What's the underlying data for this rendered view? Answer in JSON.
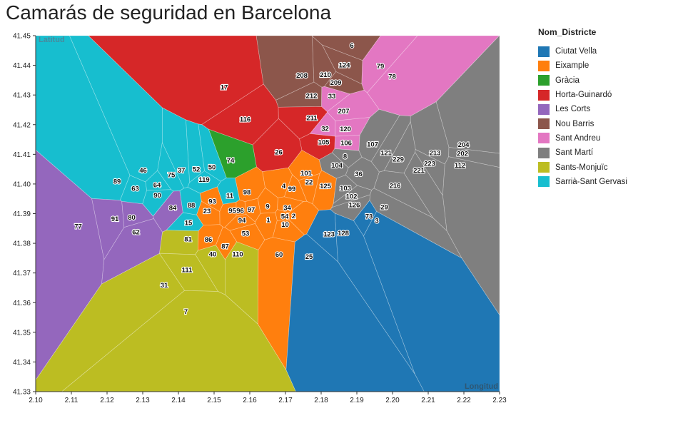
{
  "title": "Camarás de seguridad en Barcelona",
  "chart_data": {
    "type": "scatter",
    "title": "Camarás de seguridad en Barcelona",
    "xlabel": "Longitud",
    "ylabel": "Latitud",
    "xlim": [
      2.1,
      2.23
    ],
    "ylim": [
      41.33,
      41.45
    ],
    "x_ticks": [
      "2.10",
      "2.11",
      "2.12",
      "2.13",
      "2.14",
      "2.15",
      "2.16",
      "2.17",
      "2.18",
      "2.19",
      "2.20",
      "2.21",
      "2.22",
      "2.23"
    ],
    "y_ticks": [
      "41.33",
      "41.34",
      "41.35",
      "41.36",
      "41.37",
      "41.38",
      "41.39",
      "41.40",
      "41.41",
      "41.42",
      "41.43",
      "41.44",
      "41.45"
    ],
    "legend_title": "Nom_Districte",
    "legend_position": "right",
    "series": [
      {
        "name": "Ciutat Vella",
        "color": "#1f77b4"
      },
      {
        "name": "Eixample",
        "color": "#ff7f0e"
      },
      {
        "name": "Gràcia",
        "color": "#2ca02c"
      },
      {
        "name": "Horta-Guinardó",
        "color": "#d62728"
      },
      {
        "name": "Les Corts",
        "color": "#9467bd"
      },
      {
        "name": "Nou Barris",
        "color": "#8c564b"
      },
      {
        "name": "Sant Andreu",
        "color": "#e377c2"
      },
      {
        "name": "Sant Martí",
        "color": "#7f7f7f"
      },
      {
        "name": "Sants-Monjuïc",
        "color": "#bcbd22"
      },
      {
        "name": "Sarrià-Sant Gervasi",
        "color": "#17becf"
      }
    ],
    "points": [
      {
        "id": "6",
        "x": 2.1886,
        "y": 41.4468,
        "d": 5
      },
      {
        "id": "124",
        "x": 2.1865,
        "y": 41.4402,
        "d": 5
      },
      {
        "id": "79",
        "x": 2.1966,
        "y": 41.4398,
        "d": 6
      },
      {
        "id": "78",
        "x": 2.1999,
        "y": 41.4363,
        "d": 6
      },
      {
        "id": "208",
        "x": 2.1746,
        "y": 41.4366,
        "d": 5
      },
      {
        "id": "210",
        "x": 2.1812,
        "y": 41.4369,
        "d": 5
      },
      {
        "id": "209",
        "x": 2.1841,
        "y": 41.4342,
        "d": 5
      },
      {
        "id": "212",
        "x": 2.1773,
        "y": 41.4298,
        "d": 5
      },
      {
        "id": "33",
        "x": 2.183,
        "y": 41.4297,
        "d": 6
      },
      {
        "id": "17",
        "x": 2.1528,
        "y": 41.4327,
        "d": 3
      },
      {
        "id": "207",
        "x": 2.1863,
        "y": 41.4246,
        "d": 6
      },
      {
        "id": "116",
        "x": 2.1587,
        "y": 41.4219,
        "d": 3
      },
      {
        "id": "211",
        "x": 2.1774,
        "y": 41.4223,
        "d": 3
      },
      {
        "id": "32",
        "x": 2.1811,
        "y": 41.4187,
        "d": 6
      },
      {
        "id": "120",
        "x": 2.1868,
        "y": 41.4186,
        "d": 6
      },
      {
        "id": "105",
        "x": 2.1807,
        "y": 41.4142,
        "d": 3
      },
      {
        "id": "106",
        "x": 2.187,
        "y": 41.4139,
        "d": 6
      },
      {
        "id": "107",
        "x": 2.1944,
        "y": 41.4134,
        "d": 7
      },
      {
        "id": "204",
        "x": 2.2199,
        "y": 41.4133,
        "d": 7
      },
      {
        "id": "26",
        "x": 2.1681,
        "y": 41.4108,
        "d": 3
      },
      {
        "id": "121",
        "x": 2.1982,
        "y": 41.4106,
        "d": 7
      },
      {
        "id": "213",
        "x": 2.2119,
        "y": 41.4106,
        "d": 7
      },
      {
        "id": "202",
        "x": 2.2196,
        "y": 41.4103,
        "d": 7
      },
      {
        "id": "8",
        "x": 2.1867,
        "y": 41.4093,
        "d": 7
      },
      {
        "id": "229",
        "x": 2.2016,
        "y": 41.4084,
        "d": 7
      },
      {
        "id": "74",
        "x": 2.1546,
        "y": 41.408,
        "d": 2
      },
      {
        "id": "223",
        "x": 2.2104,
        "y": 41.407,
        "d": 7
      },
      {
        "id": "112",
        "x": 2.2189,
        "y": 41.4063,
        "d": 7
      },
      {
        "id": "104",
        "x": 2.1844,
        "y": 41.4063,
        "d": 7
      },
      {
        "id": "50",
        "x": 2.1494,
        "y": 41.4057,
        "d": 9
      },
      {
        "id": "221",
        "x": 2.2074,
        "y": 41.4047,
        "d": 7
      },
      {
        "id": "52",
        "x": 2.145,
        "y": 41.405,
        "d": 9
      },
      {
        "id": "37",
        "x": 2.1408,
        "y": 41.4047,
        "d": 9
      },
      {
        "id": "46",
        "x": 2.1301,
        "y": 41.4047,
        "d": 9
      },
      {
        "id": "101",
        "x": 2.1758,
        "y": 41.4037,
        "d": 1
      },
      {
        "id": "36",
        "x": 2.1905,
        "y": 41.4035,
        "d": 7
      },
      {
        "id": "75",
        "x": 2.138,
        "y": 41.4031,
        "d": 9
      },
      {
        "id": "119",
        "x": 2.1472,
        "y": 41.4016,
        "d": 9
      },
      {
        "id": "22",
        "x": 2.1766,
        "y": 41.4007,
        "d": 1
      },
      {
        "id": "89",
        "x": 2.1228,
        "y": 41.4009,
        "d": 9
      },
      {
        "id": "64",
        "x": 2.134,
        "y": 41.3997,
        "d": 9
      },
      {
        "id": "4",
        "x": 2.1695,
        "y": 41.3994,
        "d": 1
      },
      {
        "id": "125",
        "x": 2.1812,
        "y": 41.3994,
        "d": 1
      },
      {
        "id": "216",
        "x": 2.2007,
        "y": 41.3995,
        "d": 7
      },
      {
        "id": "99",
        "x": 2.1718,
        "y": 41.3984,
        "d": 1
      },
      {
        "id": "103",
        "x": 2.1868,
        "y": 41.3986,
        "d": 7
      },
      {
        "id": "63",
        "x": 2.1279,
        "y": 41.3985,
        "d": 9
      },
      {
        "id": "98",
        "x": 2.1592,
        "y": 41.3973,
        "d": 1
      },
      {
        "id": "90",
        "x": 2.1341,
        "y": 41.3962,
        "d": 9
      },
      {
        "id": "11",
        "x": 2.1544,
        "y": 41.3961,
        "d": 9
      },
      {
        "id": "102",
        "x": 2.1885,
        "y": 41.3959,
        "d": 7
      },
      {
        "id": "93",
        "x": 2.1495,
        "y": 41.3942,
        "d": 1
      },
      {
        "id": "88",
        "x": 2.1436,
        "y": 41.3929,
        "d": 9
      },
      {
        "id": "126",
        "x": 2.1893,
        "y": 41.393,
        "d": 7
      },
      {
        "id": "9",
        "x": 2.165,
        "y": 41.3925,
        "d": 1
      },
      {
        "id": "34",
        "x": 2.1705,
        "y": 41.3921,
        "d": 1
      },
      {
        "id": "29",
        "x": 2.1977,
        "y": 41.3923,
        "d": 7
      },
      {
        "id": "84",
        "x": 2.1384,
        "y": 41.392,
        "d": 4
      },
      {
        "id": "97",
        "x": 2.1604,
        "y": 41.3915,
        "d": 1
      },
      {
        "id": "95",
        "x": 2.1551,
        "y": 41.3911,
        "d": 1
      },
      {
        "id": "96",
        "x": 2.1573,
        "y": 41.3911,
        "d": 1
      },
      {
        "id": "23",
        "x": 2.148,
        "y": 41.391,
        "d": 1
      },
      {
        "id": "54",
        "x": 2.1698,
        "y": 41.3891,
        "d": 1
      },
      {
        "id": "2",
        "x": 2.1723,
        "y": 41.3893,
        "d": 1
      },
      {
        "id": "73",
        "x": 2.1934,
        "y": 41.3891,
        "d": 0
      },
      {
        "id": "91",
        "x": 2.1222,
        "y": 41.3883,
        "d": 4
      },
      {
        "id": "80",
        "x": 2.1269,
        "y": 41.3888,
        "d": 4
      },
      {
        "id": "1",
        "x": 2.1652,
        "y": 41.3879,
        "d": 1
      },
      {
        "id": "94",
        "x": 2.1578,
        "y": 41.3878,
        "d": 1
      },
      {
        "id": "3",
        "x": 2.1956,
        "y": 41.3877,
        "d": 0
      },
      {
        "id": "10",
        "x": 2.1699,
        "y": 41.3864,
        "d": 1
      },
      {
        "id": "77",
        "x": 2.1119,
        "y": 41.3858,
        "d": 4
      },
      {
        "id": "15",
        "x": 2.1428,
        "y": 41.387,
        "d": 9
      },
      {
        "id": "62",
        "x": 2.1281,
        "y": 41.3839,
        "d": 4
      },
      {
        "id": "53",
        "x": 2.1588,
        "y": 41.3834,
        "d": 1
      },
      {
        "id": "123",
        "x": 2.1822,
        "y": 41.3832,
        "d": 0
      },
      {
        "id": "128",
        "x": 2.1862,
        "y": 41.3835,
        "d": 0
      },
      {
        "id": "81",
        "x": 2.1427,
        "y": 41.3815,
        "d": 8
      },
      {
        "id": "86",
        "x": 2.1484,
        "y": 41.3813,
        "d": 1
      },
      {
        "id": "87",
        "x": 2.1531,
        "y": 41.3791,
        "d": 1
      },
      {
        "id": "40",
        "x": 2.1496,
        "y": 41.3764,
        "d": 8
      },
      {
        "id": "110",
        "x": 2.1566,
        "y": 41.3764,
        "d": 8
      },
      {
        "id": "60",
        "x": 2.1682,
        "y": 41.3763,
        "d": 1
      },
      {
        "id": "25",
        "x": 2.1766,
        "y": 41.3756,
        "d": 0
      },
      {
        "id": "111",
        "x": 2.1424,
        "y": 41.3711,
        "d": 8
      },
      {
        "id": "31",
        "x": 2.136,
        "y": 41.3659,
        "d": 8
      },
      {
        "id": "7",
        "x": 2.1421,
        "y": 41.357,
        "d": 8
      }
    ]
  }
}
